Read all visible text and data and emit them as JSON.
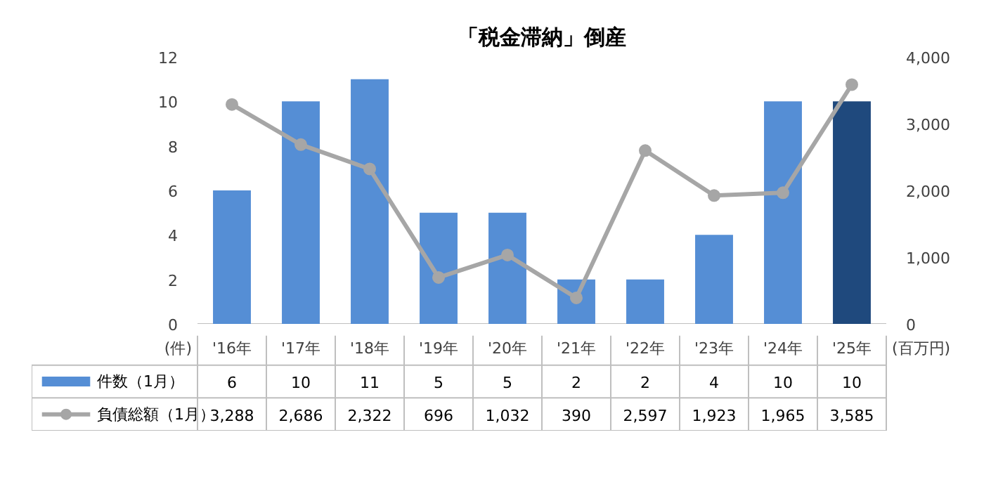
{
  "chart_data": {
    "type": "bar",
    "title": "「税金滞納」倒産",
    "ylabel": "(件)",
    "y2label": "(百万円)",
    "categories": [
      "'16年",
      "'17年",
      "'18年",
      "'19年",
      "'20年",
      "'21年",
      "'22年",
      "'23年",
      "'24年",
      "'25年"
    ],
    "series": [
      {
        "name": "件数（1月）",
        "color": "#558ed5",
        "colors": [
          "#558ed5",
          "#558ed5",
          "#558ed5",
          "#558ed5",
          "#558ed5",
          "#558ed5",
          "#558ed5",
          "#558ed5",
          "#558ed5",
          "#1f497d"
        ],
        "values": [
          6,
          10,
          11,
          5,
          5,
          2,
          2,
          4,
          10,
          10
        ]
      },
      {
        "name": "負債総額（1月）",
        "type": "line",
        "axis": "y2",
        "color": "#a6a6a6",
        "marker": "circle",
        "values": [
          3288,
          2686,
          2322,
          696,
          1032,
          390,
          2597,
          1923,
          1965,
          3585
        ],
        "value_labels": [
          "3,288",
          "2,686",
          "2,322",
          "696",
          "1,032",
          "390",
          "2,597",
          "1,923",
          "1,965",
          "3,585"
        ]
      }
    ],
    "ylim": [
      0,
      12
    ],
    "yticks": [
      0,
      2,
      4,
      6,
      8,
      10,
      12
    ],
    "y2lim": [
      0,
      4000
    ],
    "y2ticks": [
      0,
      {
        "value": 1000,
        "label": "1,000"
      },
      {
        "value": 2000,
        "label": "2,000"
      },
      {
        "value": 3000,
        "label": "3,000"
      },
      {
        "value": 4000,
        "label": "4,000"
      }
    ],
    "data_labels": true,
    "legend": "bottom",
    "grid": false
  }
}
